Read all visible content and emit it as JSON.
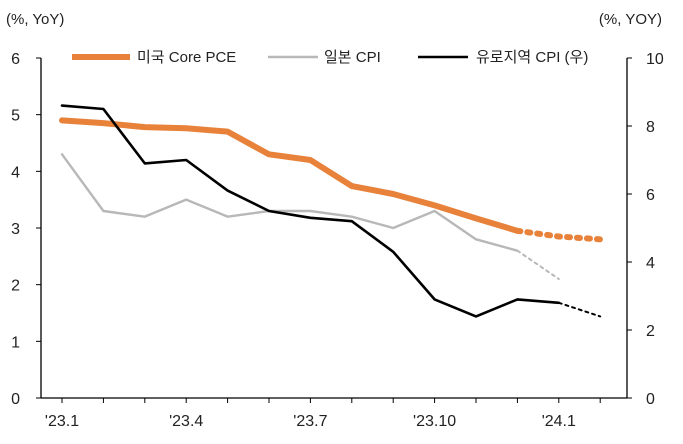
{
  "chart_data": {
    "type": "line",
    "categories": [
      "'23.1",
      "'23.2",
      "'23.3",
      "'23.4",
      "'23.5",
      "'23.6",
      "'23.7",
      "'23.8",
      "'23.9",
      "'23.10",
      "'23.11",
      "'23.12",
      "'24.1",
      "'24.2"
    ],
    "x_tick_labels": [
      "'23.1",
      "'23.4",
      "'23.7",
      "'23.10",
      "'24.1"
    ],
    "y_left": {
      "unit_label": "(%, YoY)",
      "range": [
        0,
        6
      ],
      "ticks": [
        "0",
        "1",
        "2",
        "3",
        "4",
        "5",
        "6"
      ]
    },
    "y_right": {
      "unit_label": "(%, YOY)",
      "range": [
        0,
        10
      ],
      "ticks": [
        "0",
        "2",
        "4",
        "6",
        "8",
        "10"
      ]
    },
    "legend_position": "top",
    "series": [
      {
        "name": "미국 Core PCE",
        "axis": "left",
        "color": "#E8823A",
        "values": [
          4.9,
          4.85,
          4.78,
          4.76,
          4.7,
          4.3,
          4.2,
          3.74,
          3.6,
          3.4,
          3.17,
          2.95,
          null,
          null
        ],
        "forecast": [
          null,
          null,
          null,
          null,
          null,
          null,
          null,
          null,
          null,
          null,
          null,
          2.95,
          2.85,
          2.8
        ]
      },
      {
        "name": "일본 CPI",
        "axis": "left",
        "color": "#B8B8B8",
        "values": [
          4.3,
          3.3,
          3.2,
          3.5,
          3.2,
          3.3,
          3.3,
          3.2,
          3.0,
          3.3,
          2.8,
          2.6,
          null,
          null
        ],
        "forecast": [
          null,
          null,
          null,
          null,
          null,
          null,
          null,
          null,
          null,
          null,
          null,
          2.6,
          2.1,
          null
        ]
      },
      {
        "name": "유로지역 CPI (우)",
        "axis": "right",
        "color": "#000000",
        "values": [
          8.6,
          8.5,
          6.9,
          7.0,
          6.1,
          5.5,
          5.3,
          5.2,
          4.3,
          2.9,
          2.4,
          2.9,
          2.8,
          null
        ],
        "forecast": [
          null,
          null,
          null,
          null,
          null,
          null,
          null,
          null,
          null,
          null,
          null,
          null,
          2.8,
          2.4
        ]
      }
    ]
  }
}
